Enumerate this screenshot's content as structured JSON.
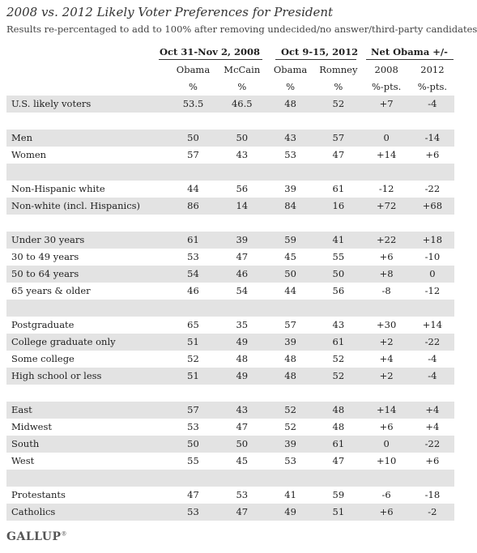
{
  "title": "2008 vs. 2012 Likely Voter Preferences for President",
  "subtitle": "Results re-percentaged to add to 100% after removing undecided/no answer/third-party candidates",
  "groups": {
    "g2008": "Oct 31-Nov 2, 2008",
    "g2012": "Oct 9-15, 2012",
    "net": "Net Obama +/-"
  },
  "columns": [
    "Obama",
    "McCain",
    "Obama",
    "Romney",
    "2008",
    "2012"
  ],
  "units": [
    "%",
    "%",
    "%",
    "%",
    "%-pts.",
    "%-pts."
  ],
  "logo": "GALLUP",
  "logo_mark": "®",
  "chart_data": {
    "type": "table",
    "title": "2008 vs. 2012 Likely Voter Preferences for President",
    "columns": [
      "Obama 2008 (%)",
      "McCain 2008 (%)",
      "Obama 2012 (%)",
      "Romney 2012 (%)",
      "Net Obama 2008 (%-pts.)",
      "Net Obama 2012 (%-pts.)"
    ],
    "rows": [
      {
        "label": "U.S. likely voters",
        "values": [
          "53.5",
          "46.5",
          "48",
          "52",
          "+7",
          "-4"
        ]
      },
      {
        "label": "",
        "values": [
          "",
          "",
          "",
          "",
          "",
          ""
        ]
      },
      {
        "label": "Men",
        "values": [
          "50",
          "50",
          "43",
          "57",
          "0",
          "-14"
        ]
      },
      {
        "label": "Women",
        "values": [
          "57",
          "43",
          "53",
          "47",
          "+14",
          "+6"
        ]
      },
      {
        "label": "",
        "values": [
          "",
          "",
          "",
          "",
          "",
          ""
        ]
      },
      {
        "label": "Non-Hispanic white",
        "values": [
          "44",
          "56",
          "39",
          "61",
          "-12",
          "-22"
        ]
      },
      {
        "label": "Non-white (incl. Hispanics)",
        "values": [
          "86",
          "14",
          "84",
          "16",
          "+72",
          "+68"
        ]
      },
      {
        "label": "",
        "values": [
          "",
          "",
          "",
          "",
          "",
          ""
        ]
      },
      {
        "label": "Under 30 years",
        "values": [
          "61",
          "39",
          "59",
          "41",
          "+22",
          "+18"
        ]
      },
      {
        "label": "30 to 49 years",
        "values": [
          "53",
          "47",
          "45",
          "55",
          "+6",
          "-10"
        ]
      },
      {
        "label": "50 to 64 years",
        "values": [
          "54",
          "46",
          "50",
          "50",
          "+8",
          "0"
        ]
      },
      {
        "label": "65 years & older",
        "values": [
          "46",
          "54",
          "44",
          "56",
          "-8",
          "-12"
        ]
      },
      {
        "label": "",
        "values": [
          "",
          "",
          "",
          "",
          "",
          ""
        ]
      },
      {
        "label": "Postgraduate",
        "values": [
          "65",
          "35",
          "57",
          "43",
          "+30",
          "+14"
        ]
      },
      {
        "label": "College graduate only",
        "values": [
          "51",
          "49",
          "39",
          "61",
          "+2",
          "-22"
        ]
      },
      {
        "label": "Some college",
        "values": [
          "52",
          "48",
          "48",
          "52",
          "+4",
          "-4"
        ]
      },
      {
        "label": "High school or less",
        "values": [
          "51",
          "49",
          "48",
          "52",
          "+2",
          "-4"
        ]
      },
      {
        "label": "",
        "values": [
          "",
          "",
          "",
          "",
          "",
          ""
        ]
      },
      {
        "label": "East",
        "values": [
          "57",
          "43",
          "52",
          "48",
          "+14",
          "+4"
        ]
      },
      {
        "label": "Midwest",
        "values": [
          "53",
          "47",
          "52",
          "48",
          "+6",
          "+4"
        ]
      },
      {
        "label": "South",
        "values": [
          "50",
          "50",
          "39",
          "61",
          "0",
          "-22"
        ]
      },
      {
        "label": "West",
        "values": [
          "55",
          "45",
          "53",
          "47",
          "+10",
          "+6"
        ]
      },
      {
        "label": "",
        "values": [
          "",
          "",
          "",
          "",
          "",
          ""
        ]
      },
      {
        "label": "Protestants",
        "values": [
          "47",
          "53",
          "41",
          "59",
          "-6",
          "-18"
        ]
      },
      {
        "label": "Catholics",
        "values": [
          "53",
          "47",
          "49",
          "51",
          "+6",
          "-2"
        ]
      }
    ]
  }
}
